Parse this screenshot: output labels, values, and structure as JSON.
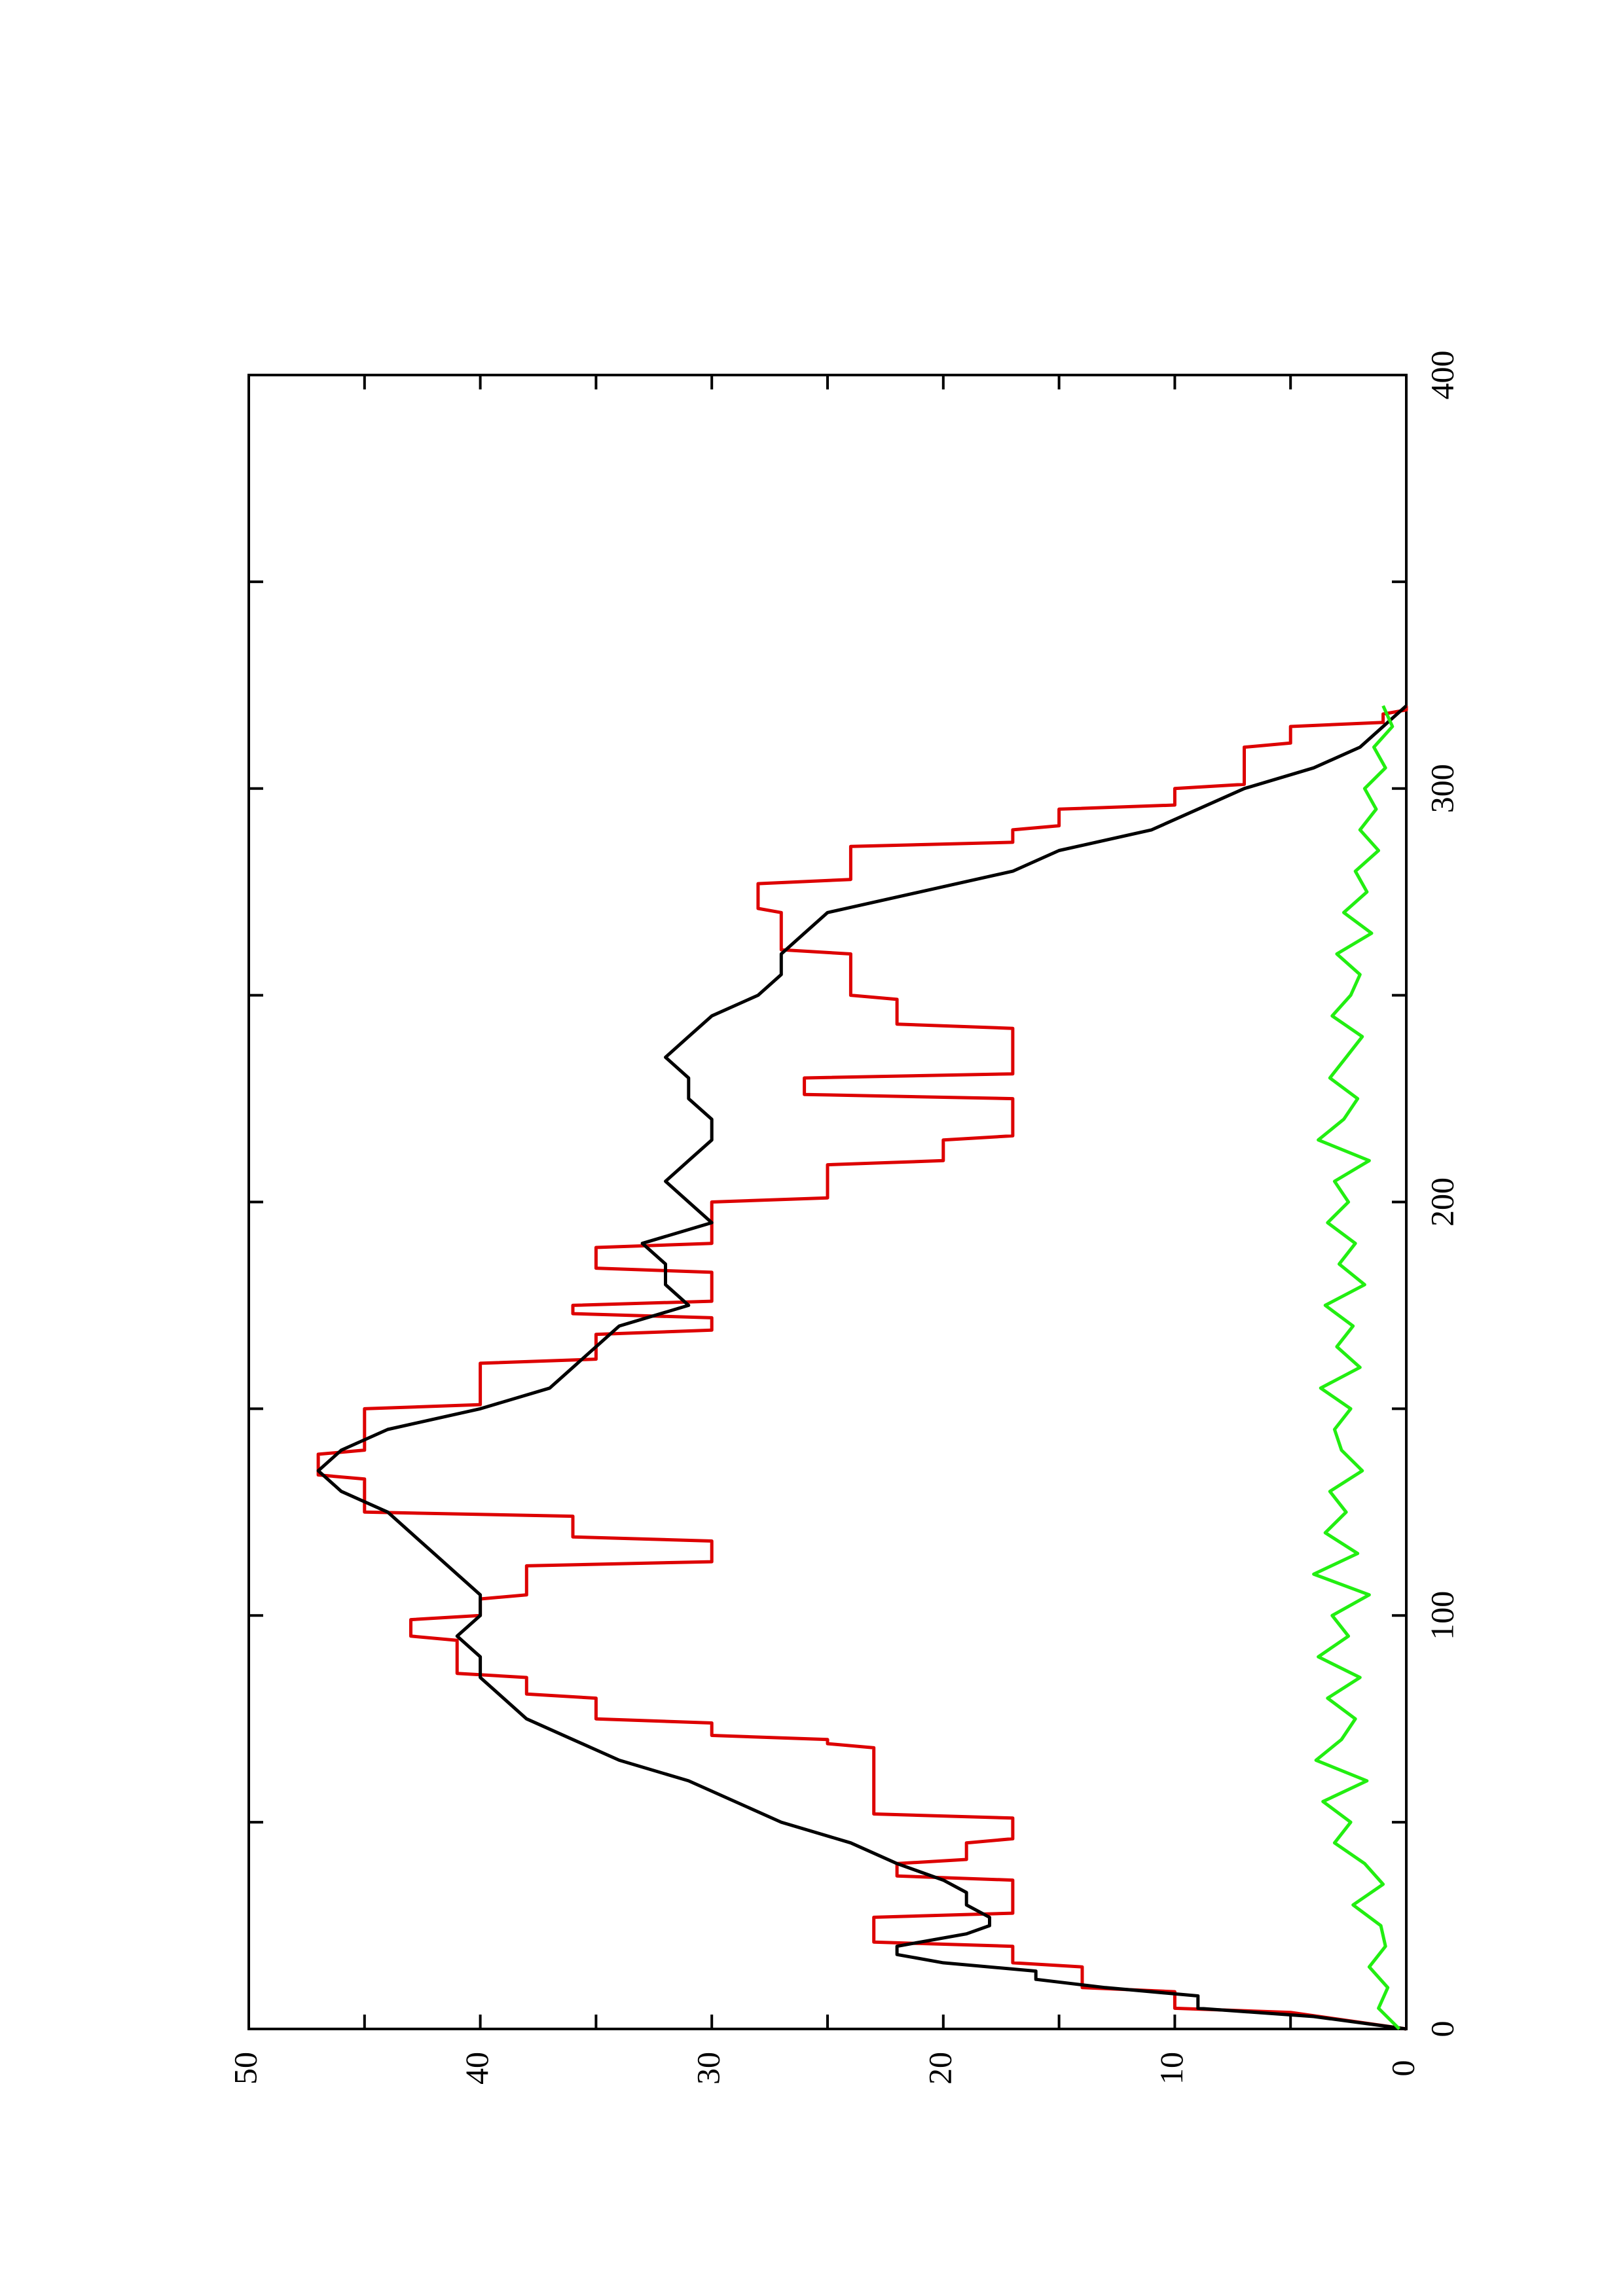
{
  "chart_data": {
    "type": "line",
    "orientation": "rotated-90-counterclockwise",
    "xlim": [
      0,
      400
    ],
    "ylim": [
      0,
      50
    ],
    "x_ticks": [
      0,
      100,
      200,
      300,
      400
    ],
    "y_ticks": [
      0,
      10,
      20,
      30,
      40,
      50
    ],
    "x_tick_labels": [
      "0",
      "100",
      "200",
      "300",
      "400"
    ],
    "y_tick_labels": [
      "0",
      "10",
      "20",
      "30",
      "40",
      "50"
    ],
    "grid": false,
    "legend": "none",
    "series": [
      {
        "color": "#dd0000",
        "x": [
          0,
          4,
          5,
          9,
          10,
          15,
          16,
          20,
          21,
          27,
          28,
          36,
          37,
          40,
          41,
          45,
          46,
          51,
          52,
          68,
          69,
          70,
          71,
          74,
          75,
          80,
          81,
          85,
          86,
          94,
          95,
          99,
          100,
          104,
          105,
          112,
          113,
          118,
          119,
          124,
          125,
          133,
          134,
          139,
          140,
          150,
          151,
          161,
          162,
          168,
          169,
          172,
          173,
          175,
          176,
          183,
          184,
          189,
          190,
          200,
          201,
          209,
          210,
          215,
          216,
          225,
          226,
          230,
          231,
          242,
          243,
          249,
          250,
          260,
          261,
          270,
          271,
          277,
          278,
          286,
          287,
          290,
          291,
          295,
          296,
          300,
          301,
          310,
          311,
          315,
          316,
          318,
          319,
          320
        ],
        "y": [
          0,
          5,
          10,
          10,
          14,
          14,
          17,
          17,
          23,
          23,
          17,
          17,
          22,
          22,
          19,
          19,
          17,
          17,
          23,
          23,
          25,
          25,
          30,
          30,
          35,
          35,
          38,
          38,
          41,
          41,
          43,
          43,
          40,
          40,
          38,
          38,
          30,
          30,
          36,
          36,
          45,
          45,
          47,
          47,
          45,
          45,
          40,
          40,
          35,
          35,
          30,
          30,
          36,
          36,
          30,
          30,
          35,
          35,
          30,
          30,
          25,
          25,
          20,
          20,
          17,
          17,
          26,
          26,
          17,
          17,
          22,
          22,
          24,
          24,
          27,
          27,
          28,
          28,
          24,
          24,
          17,
          17,
          15,
          15,
          10,
          10,
          7,
          7,
          5,
          5,
          1,
          1,
          0,
          0
        ]
      },
      {
        "color": "#000000",
        "x": [
          0,
          3,
          5,
          8,
          10,
          12,
          14,
          16,
          18,
          20,
          21,
          23,
          25,
          27,
          30,
          33,
          36,
          40,
          45,
          50,
          55,
          60,
          65,
          70,
          75,
          80,
          85,
          90,
          95,
          100,
          105,
          110,
          115,
          120,
          125,
          130,
          135,
          140,
          145,
          150,
          155,
          160,
          165,
          170,
          175,
          180,
          185,
          190,
          195,
          200,
          205,
          210,
          215,
          220,
          225,
          230,
          235,
          240,
          245,
          250,
          255,
          260,
          265,
          270,
          275,
          280,
          285,
          290,
          295,
          300,
          305,
          310,
          315,
          320
        ],
        "y": [
          0,
          4,
          9,
          9,
          13,
          16,
          16,
          20,
          22,
          22,
          21,
          19,
          18,
          18,
          19,
          19,
          20,
          22,
          24,
          27,
          29,
          31,
          34,
          36,
          38,
          39,
          40,
          40,
          41,
          40,
          40,
          41,
          42,
          43,
          44,
          46,
          47,
          46,
          44,
          40,
          37,
          36,
          35,
          34,
          31,
          32,
          32,
          33,
          30,
          31,
          32,
          31,
          30,
          30,
          31,
          31,
          32,
          31,
          30,
          28,
          27,
          27,
          26,
          25,
          21,
          17,
          15,
          11,
          9,
          7,
          4,
          2,
          1,
          0
        ]
      },
      {
        "color": "#22ee11",
        "x": [
          0,
          5,
          10,
          15,
          20,
          25,
          30,
          35,
          40,
          45,
          50,
          55,
          60,
          65,
          70,
          75,
          80,
          85,
          90,
          95,
          100,
          105,
          110,
          115,
          120,
          125,
          130,
          135,
          140,
          145,
          150,
          155,
          160,
          165,
          170,
          175,
          180,
          185,
          190,
          195,
          200,
          205,
          210,
          215,
          220,
          225,
          230,
          235,
          240,
          245,
          250,
          255,
          260,
          265,
          270,
          275,
          280,
          285,
          290,
          295,
          300,
          305,
          310,
          315,
          320
        ],
        "y": [
          0.3,
          1.2,
          0.8,
          1.6,
          0.9,
          1.1,
          2.3,
          1.0,
          1.8,
          3.1,
          2.4,
          3.6,
          1.7,
          3.9,
          2.8,
          2.2,
          3.4,
          2.0,
          3.8,
          2.5,
          3.2,
          1.6,
          4.0,
          2.1,
          3.5,
          2.6,
          3.3,
          1.9,
          2.8,
          3.1,
          2.4,
          3.7,
          2.0,
          3.0,
          2.3,
          3.5,
          1.8,
          2.9,
          2.2,
          3.4,
          2.5,
          3.1,
          1.6,
          3.8,
          2.7,
          2.1,
          3.3,
          2.6,
          1.9,
          3.2,
          2.4,
          2.0,
          3.0,
          1.5,
          2.7,
          1.7,
          2.2,
          1.2,
          2.0,
          1.3,
          1.8,
          0.9,
          1.4,
          0.6,
          1.0
        ]
      }
    ]
  }
}
